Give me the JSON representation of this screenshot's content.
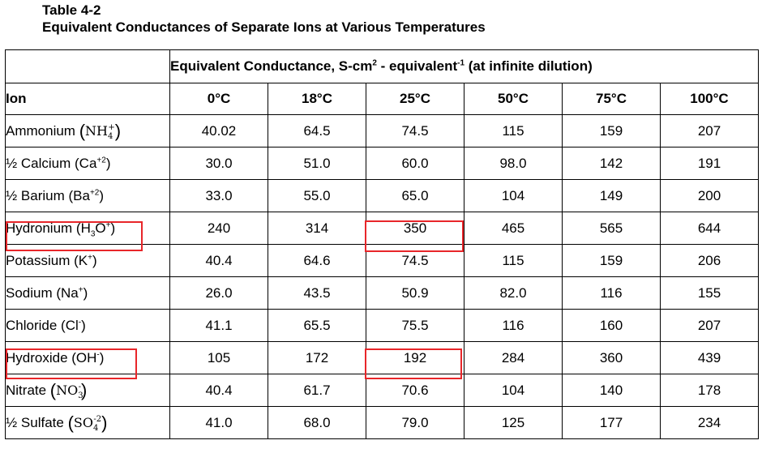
{
  "caption": {
    "line1": "Table 4-2",
    "line2": "Equivalent Conductances of Separate Ions at Various Temperatures"
  },
  "header": {
    "group_prefix": "Equivalent Conductance, S-cm",
    "group_exp1": "2",
    "group_mid": " - equivalent",
    "group_exp2": "-1",
    "group_suffix": " (at infinite dilution)",
    "ion_label": "Ion",
    "temps": [
      "0°C",
      "18°C",
      "25°C",
      "50°C",
      "75°C",
      "100°C"
    ]
  },
  "rows": [
    {
      "name": "Ammonium ",
      "formula_base": "NH",
      "formula_sub": "4",
      "formula_sup": "+",
      "style": "paren",
      "values": [
        "40.02",
        "64.5",
        "74.5",
        "115",
        "159",
        "207"
      ]
    },
    {
      "name": "½ Calcium (Ca",
      "sup": "+2",
      "close": ")",
      "style": "simple",
      "values": [
        "30.0",
        "51.0",
        "60.0",
        "98.0",
        "142",
        "191"
      ]
    },
    {
      "name": "½ Barium (Ba",
      "sup": "+2",
      "close": ")",
      "style": "simple",
      "values": [
        "33.0",
        "55.0",
        "65.0",
        "104",
        "149",
        "200"
      ]
    },
    {
      "name": "Hydronium (H",
      "sub": "3",
      "mid": "O",
      "sup": "+",
      "close": ")",
      "style": "hydronium",
      "values": [
        "240",
        "314",
        "350",
        "465",
        "565",
        "644"
      ]
    },
    {
      "name": "Potassium (K",
      "sup": "+",
      "close": ")",
      "style": "simple",
      "values": [
        "40.4",
        "64.6",
        "74.5",
        "115",
        "159",
        "206"
      ]
    },
    {
      "name": "Sodium (Na",
      "sup": "+",
      "close": ")",
      "style": "simple",
      "values": [
        "26.0",
        "43.5",
        "50.9",
        "82.0",
        "116",
        "155"
      ]
    },
    {
      "name": "Chloride (Cl",
      "sup": "-",
      "close": ")",
      "style": "simple",
      "values": [
        "41.1",
        "65.5",
        "75.5",
        "116",
        "160",
        "207"
      ]
    },
    {
      "name": "Hydroxide (OH",
      "sup": "-",
      "close": ")",
      "style": "simple",
      "values": [
        "105",
        "172",
        "192",
        "284",
        "360",
        "439"
      ]
    },
    {
      "name": "Nitrate ",
      "formula_base": "NO",
      "formula_sub": "3",
      "formula_sup": "-",
      "style": "paren",
      "values": [
        "40.4",
        "61.7",
        "70.6",
        "104",
        "140",
        "178"
      ]
    },
    {
      "name": "½ Sulfate ",
      "formula_base": "SO",
      "formula_sub": "4",
      "formula_sup": "-2",
      "style": "paren",
      "values": [
        "41.0",
        "68.0",
        "79.0",
        "125",
        "177",
        "234"
      ]
    }
  ],
  "highlight_color": "#e8262a"
}
